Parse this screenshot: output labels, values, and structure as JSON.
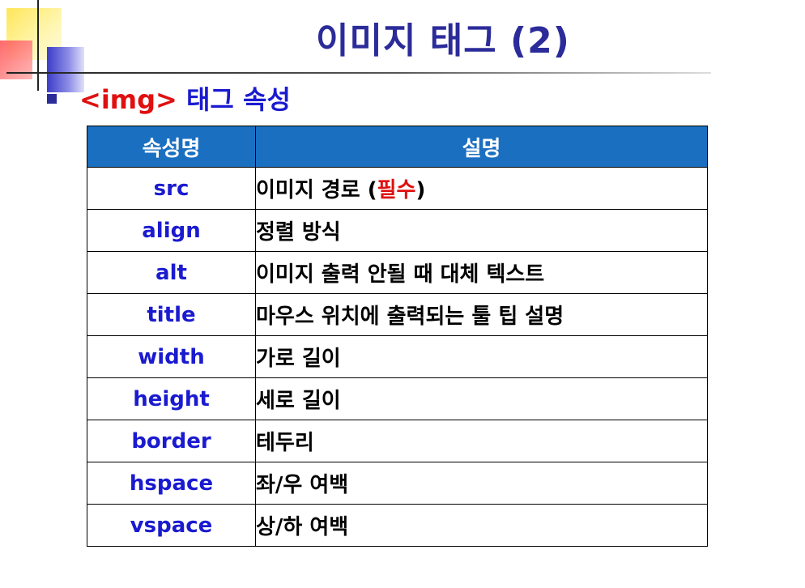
{
  "title": "이미지 태그 (2)",
  "subtitle": {
    "tag": "<img>",
    "text": " 태그 속성"
  },
  "table": {
    "headers": [
      "속성명",
      "설명"
    ],
    "rows": [
      {
        "name": "src",
        "desc": "이미지 경로 (",
        "desc_highlight": "필수",
        "desc_end": ")"
      },
      {
        "name": "align",
        "desc": "정렬 방식"
      },
      {
        "name": "alt",
        "desc": "이미지 출력 안될 때 대체 텍스트"
      },
      {
        "name": "title",
        "desc": "마우스 위치에 출력되는 툴 팁 설명"
      },
      {
        "name": "width",
        "desc": "가로 길이"
      },
      {
        "name": "height",
        "desc": "세로 길이"
      },
      {
        "name": "border",
        "desc": "테두리"
      },
      {
        "name": "hspace",
        "desc": "좌/우 여백"
      },
      {
        "name": "vspace",
        "desc": "상/하 여백"
      }
    ]
  },
  "colors": {
    "title": "#2b2b9a",
    "header_bg": "#1a6fc0",
    "attr_name": "#1a1ad0",
    "highlight": "#e01010"
  }
}
